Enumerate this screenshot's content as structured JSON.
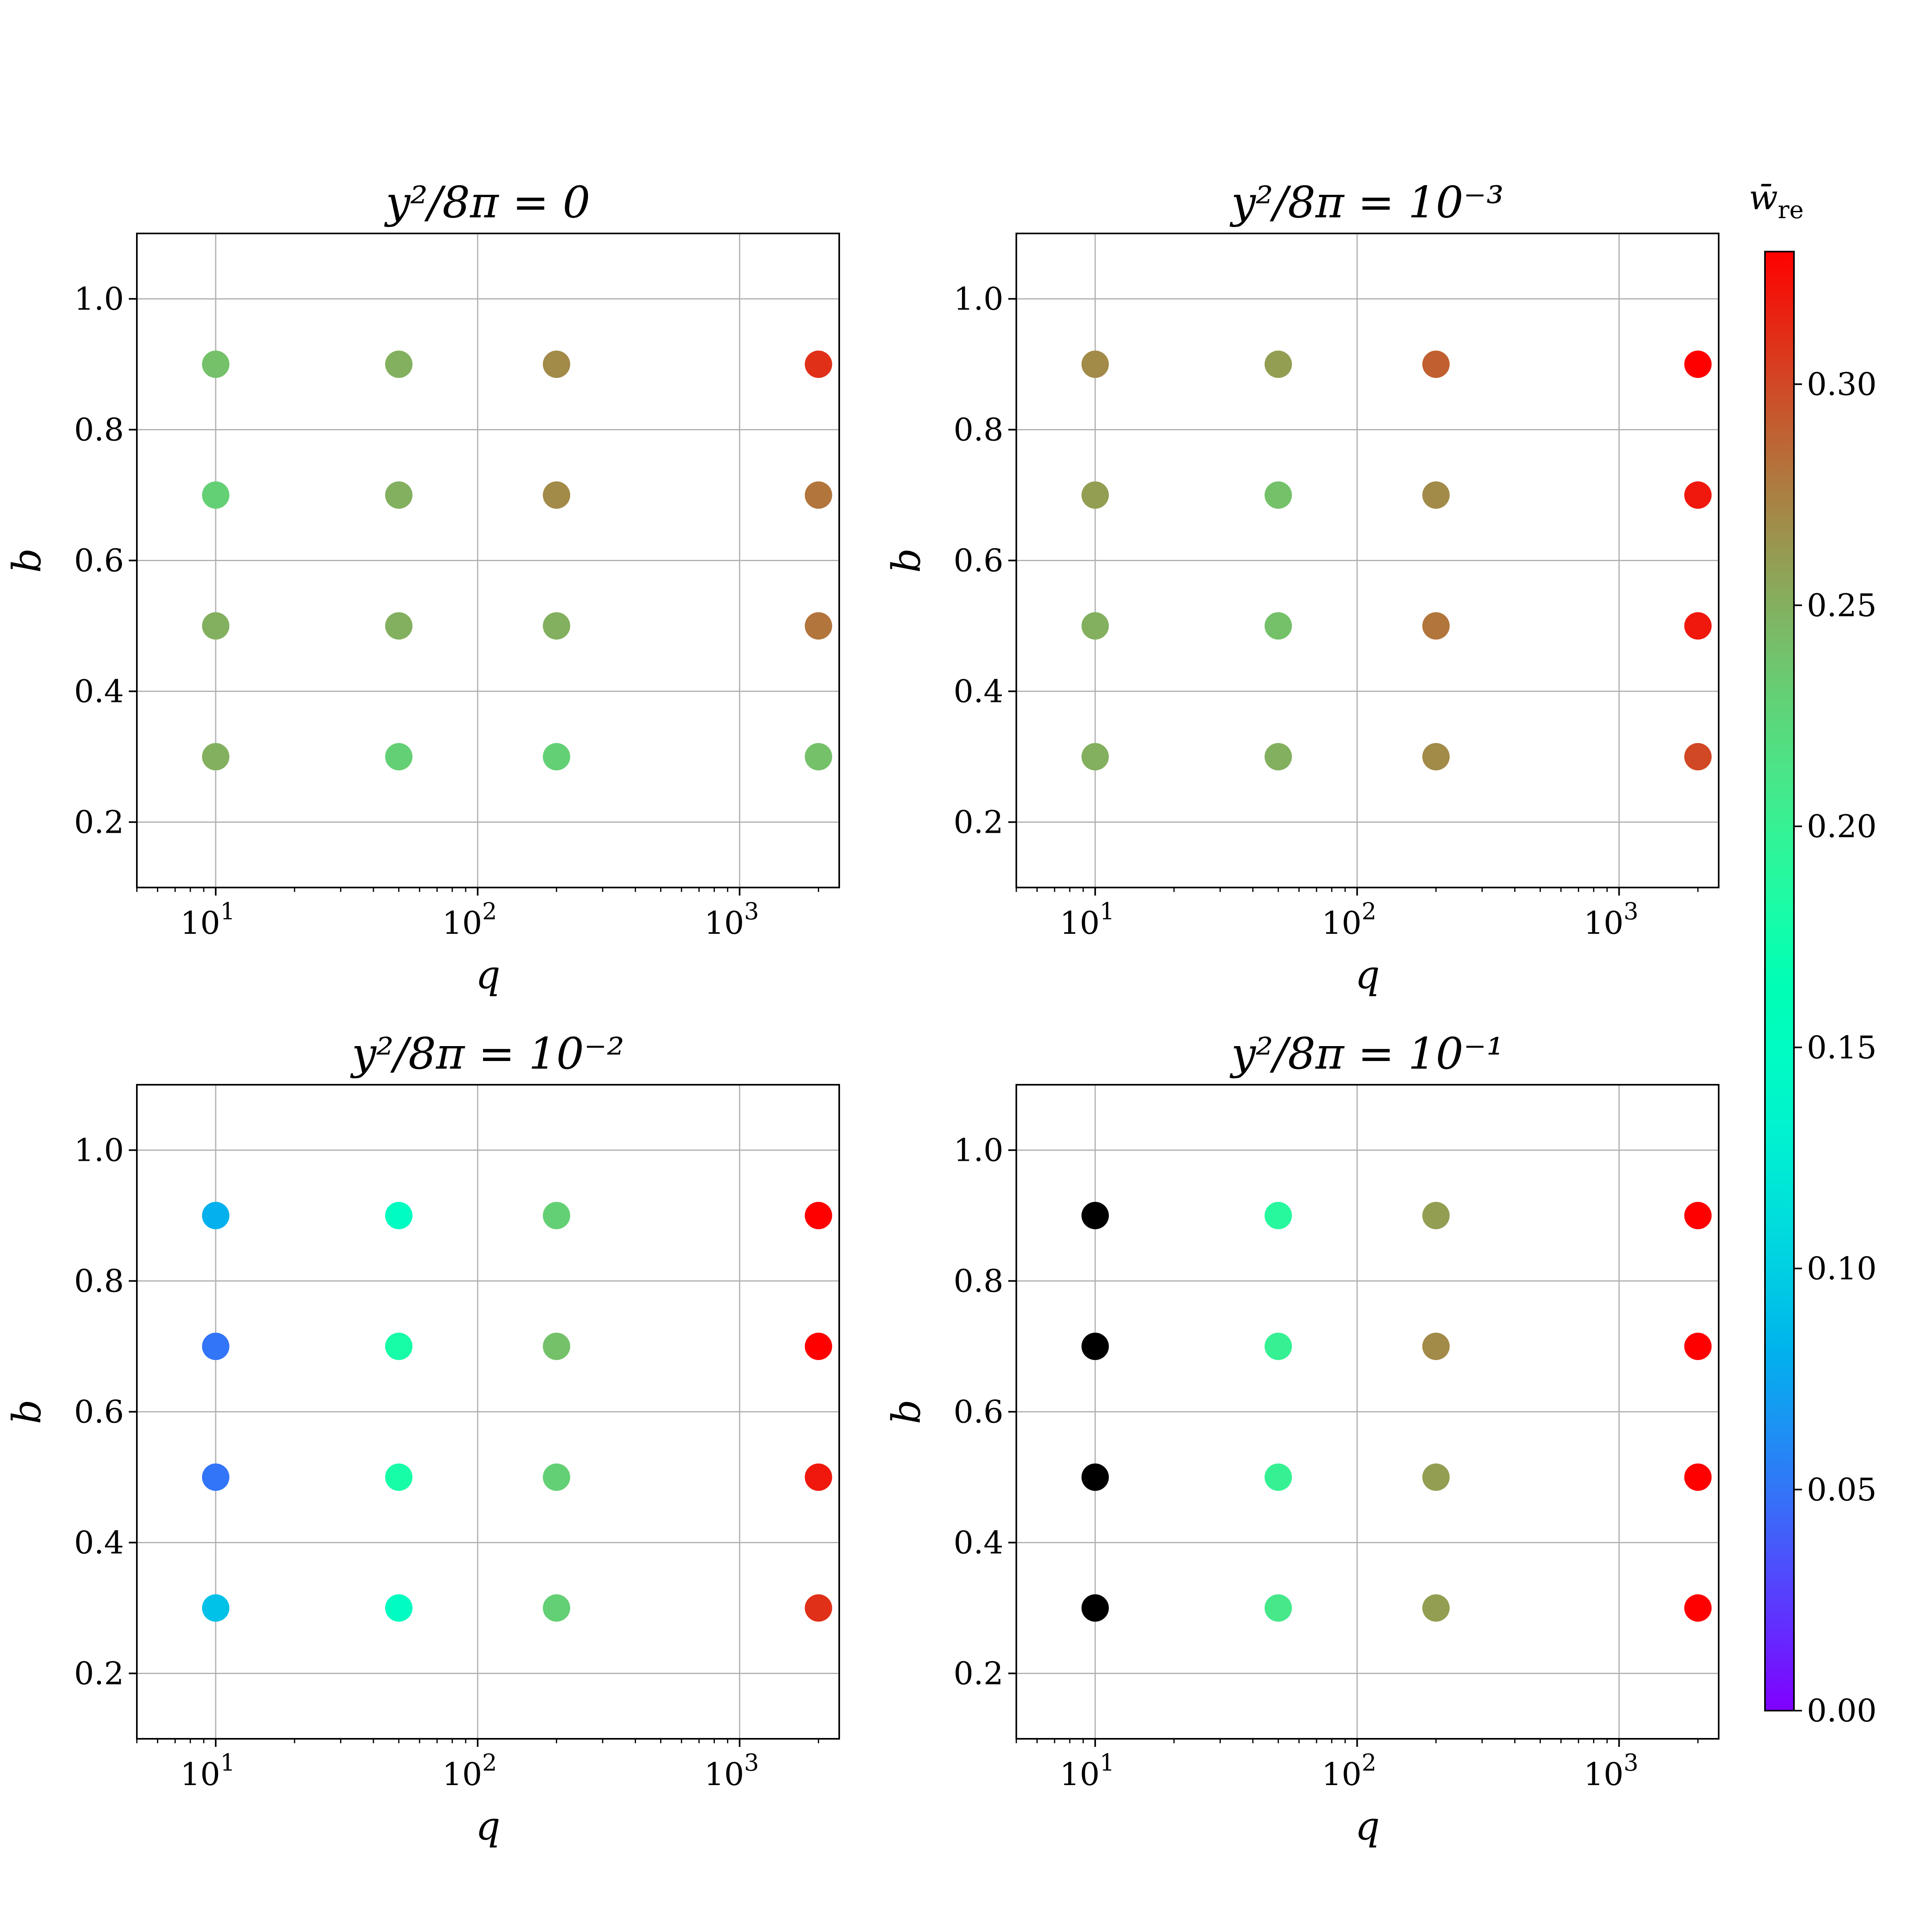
{
  "chart_data": {
    "type": "scatter",
    "colorbar": {
      "label": "w̄",
      "label_sub": "re",
      "range": [
        0.0,
        0.33
      ],
      "ticks": [
        "0.00",
        "0.05",
        "0.10",
        "0.15",
        "0.20",
        "0.25",
        "0.30"
      ],
      "colormap": "rainbow"
    },
    "panels": [
      {
        "title": "y²/8π = 0",
        "xlabel": "q",
        "ylabel": "b",
        "xscale": "log",
        "xlim": [
          5,
          2400
        ],
        "ylim": [
          0.1,
          1.1
        ],
        "xticks": [
          {
            "value": 10,
            "label": "10",
            "exp": "1"
          },
          {
            "value": 100,
            "label": "10",
            "exp": "2"
          },
          {
            "value": 1000,
            "label": "10",
            "exp": "3"
          }
        ],
        "yticks": [
          "0.2",
          "0.4",
          "0.6",
          "0.8",
          "1.0"
        ],
        "grid": true,
        "points": [
          {
            "q": 10,
            "b": 0.9,
            "w": 0.24
          },
          {
            "q": 50,
            "b": 0.9,
            "w": 0.25
          },
          {
            "q": 200,
            "b": 0.9,
            "w": 0.27
          },
          {
            "q": 2000,
            "b": 0.9,
            "w": 0.31
          },
          {
            "q": 10,
            "b": 0.7,
            "w": 0.23
          },
          {
            "q": 50,
            "b": 0.7,
            "w": 0.25
          },
          {
            "q": 200,
            "b": 0.7,
            "w": 0.27
          },
          {
            "q": 2000,
            "b": 0.7,
            "w": 0.28
          },
          {
            "q": 10,
            "b": 0.5,
            "w": 0.25
          },
          {
            "q": 50,
            "b": 0.5,
            "w": 0.25
          },
          {
            "q": 200,
            "b": 0.5,
            "w": 0.25
          },
          {
            "q": 2000,
            "b": 0.5,
            "w": 0.28
          },
          {
            "q": 10,
            "b": 0.3,
            "w": 0.25
          },
          {
            "q": 50,
            "b": 0.3,
            "w": 0.23
          },
          {
            "q": 200,
            "b": 0.3,
            "w": 0.23
          },
          {
            "q": 2000,
            "b": 0.3,
            "w": 0.24
          }
        ]
      },
      {
        "title": "y²/8π = 10⁻³",
        "xlabel": "q",
        "ylabel": "b",
        "xscale": "log",
        "xlim": [
          5,
          2400
        ],
        "ylim": [
          0.1,
          1.1
        ],
        "xticks": [
          {
            "value": 10,
            "label": "10",
            "exp": "1"
          },
          {
            "value": 100,
            "label": "10",
            "exp": "2"
          },
          {
            "value": 1000,
            "label": "10",
            "exp": "3"
          }
        ],
        "yticks": [
          "0.2",
          "0.4",
          "0.6",
          "0.8",
          "1.0"
        ],
        "grid": true,
        "points": [
          {
            "q": 10,
            "b": 0.9,
            "w": 0.27
          },
          {
            "q": 50,
            "b": 0.9,
            "w": 0.26
          },
          {
            "q": 200,
            "b": 0.9,
            "w": 0.29
          },
          {
            "q": 2000,
            "b": 0.9,
            "w": 0.33
          },
          {
            "q": 10,
            "b": 0.7,
            "w": 0.26
          },
          {
            "q": 50,
            "b": 0.7,
            "w": 0.24
          },
          {
            "q": 200,
            "b": 0.7,
            "w": 0.27
          },
          {
            "q": 2000,
            "b": 0.7,
            "w": 0.32
          },
          {
            "q": 10,
            "b": 0.5,
            "w": 0.25
          },
          {
            "q": 50,
            "b": 0.5,
            "w": 0.24
          },
          {
            "q": 200,
            "b": 0.5,
            "w": 0.28
          },
          {
            "q": 2000,
            "b": 0.5,
            "w": 0.32
          },
          {
            "q": 10,
            "b": 0.3,
            "w": 0.25
          },
          {
            "q": 50,
            "b": 0.3,
            "w": 0.25
          },
          {
            "q": 200,
            "b": 0.3,
            "w": 0.27
          },
          {
            "q": 2000,
            "b": 0.3,
            "w": 0.3
          }
        ]
      },
      {
        "title": "y²/8π = 10⁻²",
        "xlabel": "q",
        "ylabel": "b",
        "xscale": "log",
        "xlim": [
          5,
          2400
        ],
        "ylim": [
          0.1,
          1.1
        ],
        "xticks": [
          {
            "value": 10,
            "label": "10",
            "exp": "1"
          },
          {
            "value": 100,
            "label": "10",
            "exp": "2"
          },
          {
            "value": 1000,
            "label": "10",
            "exp": "3"
          }
        ],
        "yticks": [
          "0.2",
          "0.4",
          "0.6",
          "0.8",
          "1.0"
        ],
        "grid": true,
        "points": [
          {
            "q": 10,
            "b": 0.9,
            "w": 0.08
          },
          {
            "q": 50,
            "b": 0.9,
            "w": 0.15
          },
          {
            "q": 200,
            "b": 0.9,
            "w": 0.23
          },
          {
            "q": 2000,
            "b": 0.9,
            "w": 0.33
          },
          {
            "q": 10,
            "b": 0.7,
            "w": 0.05
          },
          {
            "q": 50,
            "b": 0.7,
            "w": 0.18
          },
          {
            "q": 200,
            "b": 0.7,
            "w": 0.24
          },
          {
            "q": 2000,
            "b": 0.7,
            "w": 0.33
          },
          {
            "q": 10,
            "b": 0.5,
            "w": 0.05
          },
          {
            "q": 50,
            "b": 0.5,
            "w": 0.18
          },
          {
            "q": 200,
            "b": 0.5,
            "w": 0.23
          },
          {
            "q": 2000,
            "b": 0.5,
            "w": 0.32
          },
          {
            "q": 10,
            "b": 0.3,
            "w": 0.09
          },
          {
            "q": 50,
            "b": 0.3,
            "w": 0.15
          },
          {
            "q": 200,
            "b": 0.3,
            "w": 0.23
          },
          {
            "q": 2000,
            "b": 0.3,
            "w": 0.31
          }
        ]
      },
      {
        "title": "y²/8π = 10⁻¹",
        "xlabel": "q",
        "ylabel": "b",
        "xscale": "log",
        "xlim": [
          5,
          2400
        ],
        "ylim": [
          0.1,
          1.1
        ],
        "xticks": [
          {
            "value": 10,
            "label": "10",
            "exp": "1"
          },
          {
            "value": 100,
            "label": "10",
            "exp": "2"
          },
          {
            "value": 1000,
            "label": "10",
            "exp": "3"
          }
        ],
        "yticks": [
          "0.2",
          "0.4",
          "0.6",
          "0.8",
          "1.0"
        ],
        "grid": true,
        "points": [
          {
            "q": 10,
            "b": 0.9,
            "w": null,
            "color": "#000000"
          },
          {
            "q": 50,
            "b": 0.9,
            "w": 0.19
          },
          {
            "q": 200,
            "b": 0.9,
            "w": 0.26
          },
          {
            "q": 2000,
            "b": 0.9,
            "w": 0.33
          },
          {
            "q": 10,
            "b": 0.7,
            "w": null,
            "color": "#000000"
          },
          {
            "q": 50,
            "b": 0.7,
            "w": 0.2
          },
          {
            "q": 200,
            "b": 0.7,
            "w": 0.27
          },
          {
            "q": 2000,
            "b": 0.7,
            "w": 0.33
          },
          {
            "q": 10,
            "b": 0.5,
            "w": null,
            "color": "#000000"
          },
          {
            "q": 50,
            "b": 0.5,
            "w": 0.2
          },
          {
            "q": 200,
            "b": 0.5,
            "w": 0.26
          },
          {
            "q": 2000,
            "b": 0.5,
            "w": 0.33
          },
          {
            "q": 10,
            "b": 0.3,
            "w": null,
            "color": "#000000"
          },
          {
            "q": 50,
            "b": 0.3,
            "w": 0.21
          },
          {
            "q": 200,
            "b": 0.3,
            "w": 0.26
          },
          {
            "q": 2000,
            "b": 0.3,
            "w": 0.33
          }
        ]
      }
    ]
  }
}
